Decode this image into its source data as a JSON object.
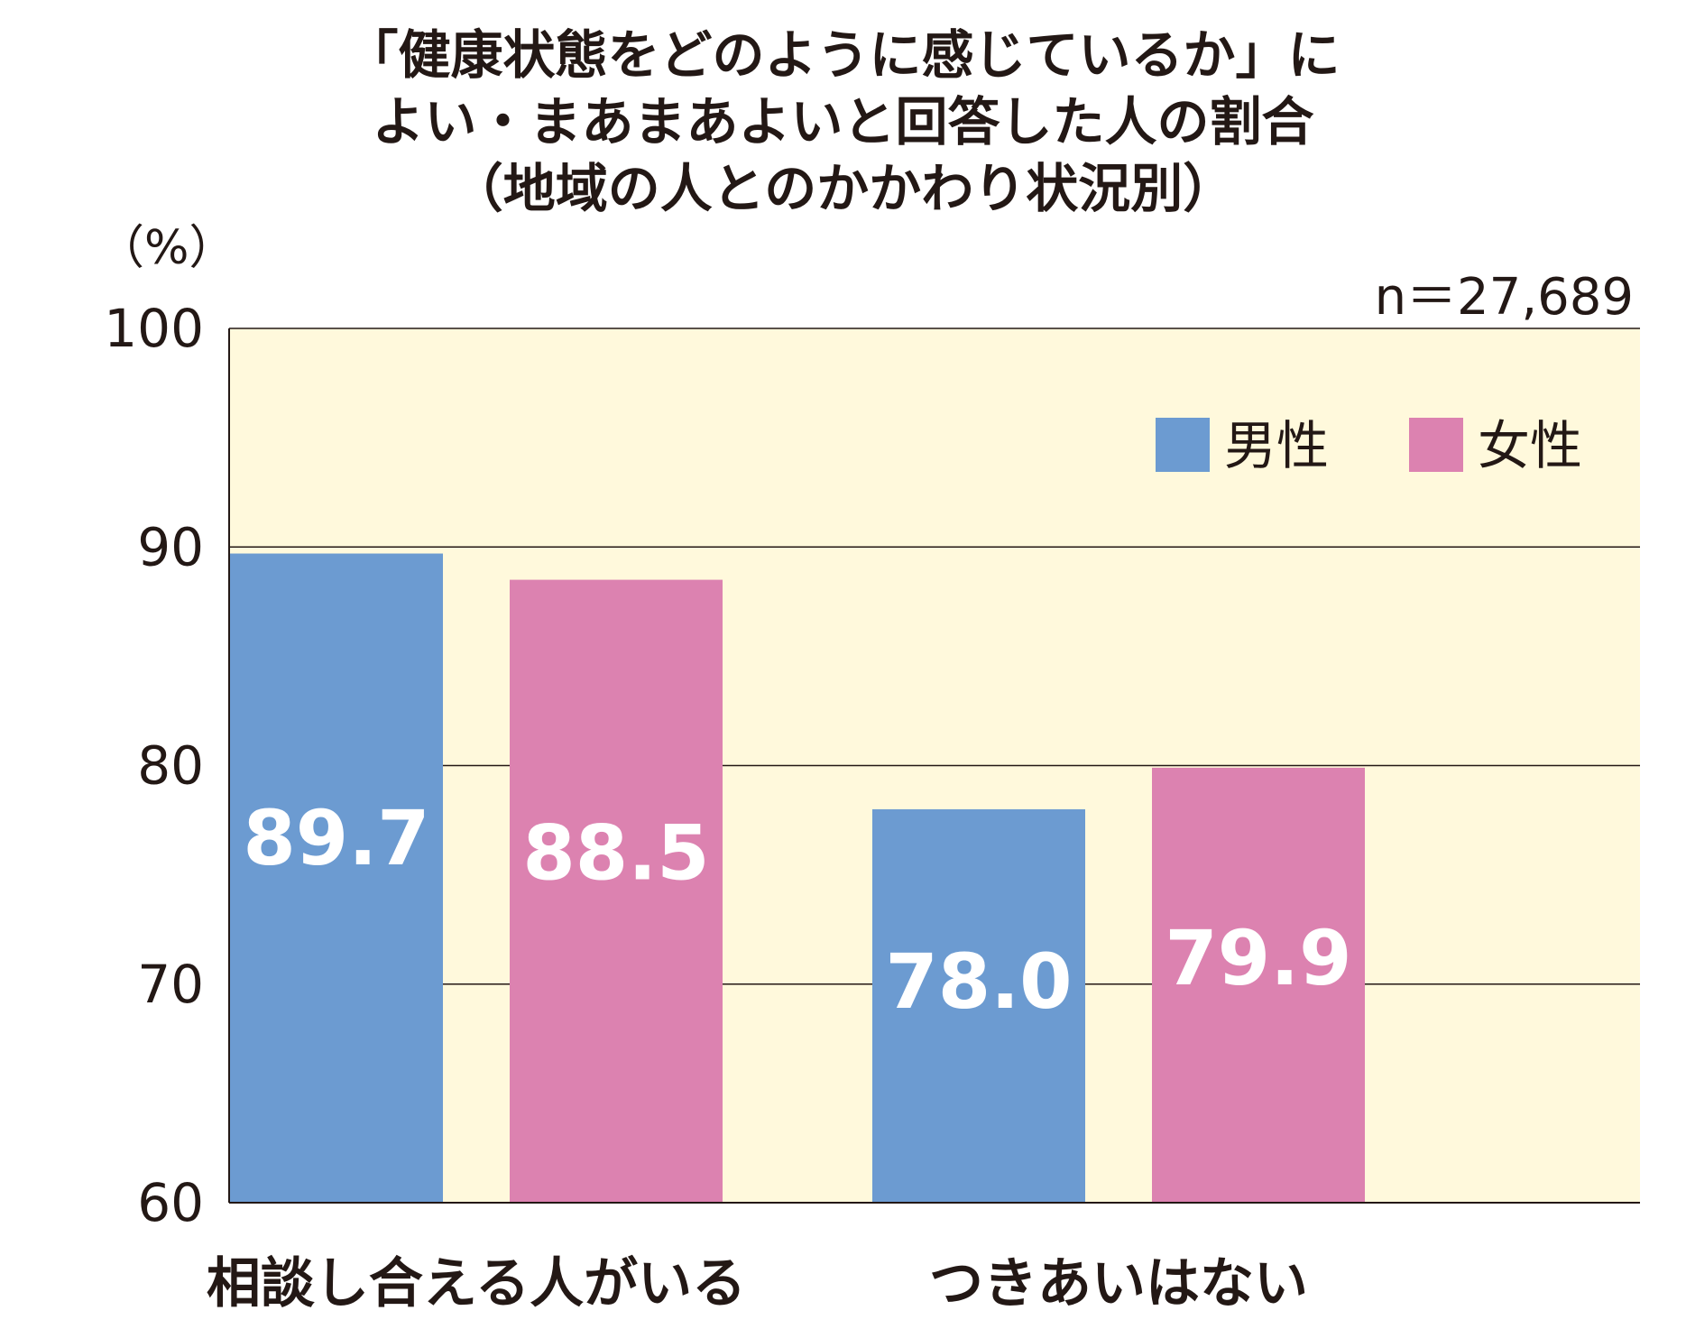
{
  "title_lines": [
    "「健康状態をどのように感じているか」に",
    "よい・まあまあよいと回答した人の割合",
    "（地域の人とのかかわり状況別）"
  ],
  "unit_label": "（%）",
  "sample_label": "n＝27,689",
  "colors": {
    "plot_background": "#fff9dc",
    "male": "#6c9bd1",
    "female": "#dc82b0",
    "axis": "#231815",
    "value_label": "#ffffff"
  },
  "chart_data": {
    "type": "bar",
    "categories": [
      "相談し合える人がいる",
      "つきあいはない"
    ],
    "series": [
      {
        "name": "男性",
        "values": [
          89.7,
          78.0
        ]
      },
      {
        "name": "女性",
        "values": [
          88.5,
          79.9
        ]
      }
    ],
    "value_labels": [
      [
        "89.7",
        "78.0"
      ],
      [
        "88.5",
        "79.9"
      ]
    ],
    "yticks": [
      "60",
      "70",
      "80",
      "90",
      "100"
    ],
    "ylim": [
      60,
      100
    ],
    "grid": true,
    "legend_position": "top-right"
  }
}
